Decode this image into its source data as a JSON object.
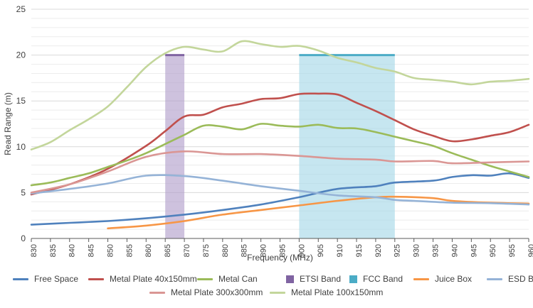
{
  "chart_data": {
    "type": "line",
    "title": "",
    "xlabel": "Frequency (MHz)",
    "ylabel": "Read Range (m)",
    "xlim": [
      830,
      960
    ],
    "ylim": [
      0,
      25
    ],
    "x_ticks": [
      830,
      835,
      840,
      845,
      850,
      855,
      860,
      865,
      870,
      875,
      880,
      885,
      890,
      895,
      900,
      905,
      910,
      915,
      920,
      925,
      930,
      935,
      940,
      945,
      950,
      955,
      960
    ],
    "y_ticks": [
      0,
      5,
      10,
      15,
      20,
      25
    ],
    "grid": "horizontal",
    "legend_position": "bottom",
    "bands": [
      {
        "name": "ETSI Band",
        "x": [
          865,
          870
        ],
        "y": 20,
        "color": "#8064a2"
      },
      {
        "name": "FCC Band",
        "x": [
          900,
          925
        ],
        "y": 20,
        "color": "#4bacc6"
      }
    ],
    "series": [
      {
        "name": "Free Space",
        "color": "#4f81bd",
        "x": [
          830,
          840,
          850,
          860,
          870,
          880,
          890,
          900,
          910,
          920,
          925,
          935,
          940,
          945,
          950,
          955,
          960
        ],
        "values": [
          1.5,
          1.7,
          1.9,
          2.2,
          2.6,
          3.1,
          3.7,
          4.5,
          5.4,
          5.7,
          6.1,
          6.3,
          6.7,
          6.9,
          6.85,
          7.1,
          6.6
        ]
      },
      {
        "name": "Metal Plate 40x150mm",
        "color": "#c0504d",
        "x": [
          830,
          840,
          850,
          860,
          865,
          870,
          875,
          880,
          885,
          890,
          895,
          900,
          905,
          910,
          915,
          920,
          925,
          930,
          935,
          940,
          945,
          950,
          955,
          960
        ],
        "values": [
          4.8,
          5.9,
          7.6,
          10.1,
          11.7,
          13.3,
          13.5,
          14.3,
          14.7,
          15.2,
          15.3,
          15.75,
          15.8,
          15.7,
          14.8,
          13.9,
          12.9,
          11.9,
          11.2,
          10.6,
          10.8,
          11.2,
          11.6,
          12.4
        ]
      },
      {
        "name": "Metal Can",
        "color": "#9bbb59",
        "x": [
          830,
          835,
          840,
          845,
          850,
          855,
          860,
          865,
          870,
          875,
          880,
          885,
          890,
          895,
          900,
          905,
          910,
          915,
          920,
          925,
          930,
          935,
          940,
          945,
          950,
          955,
          960
        ],
        "values": [
          5.8,
          6.1,
          6.6,
          7.1,
          7.8,
          8.5,
          9.3,
          10.3,
          11.3,
          12.3,
          12.2,
          11.9,
          12.5,
          12.3,
          12.2,
          12.4,
          12.05,
          12.0,
          11.6,
          11.1,
          10.6,
          10.1,
          9.3,
          8.6,
          7.9,
          7.3,
          6.7
        ]
      },
      {
        "name": "Juice Box",
        "color": "#f79646",
        "x": [
          850,
          860,
          870,
          880,
          890,
          900,
          910,
          920,
          925,
          935,
          940,
          950,
          960
        ],
        "values": [
          1.1,
          1.4,
          1.9,
          2.6,
          3.1,
          3.6,
          4.1,
          4.5,
          4.55,
          4.4,
          4.1,
          3.9,
          3.8
        ]
      },
      {
        "name": "ESD Bag",
        "color": "#95b3d7",
        "x": [
          830,
          840,
          850,
          860,
          870,
          880,
          890,
          900,
          910,
          920,
          925,
          930,
          940,
          950,
          960
        ],
        "values": [
          4.9,
          5.4,
          6.0,
          6.85,
          6.8,
          6.3,
          5.7,
          5.2,
          4.7,
          4.5,
          4.2,
          4.1,
          3.9,
          3.85,
          3.7
        ]
      },
      {
        "name": "Metal Plate 300x300mm",
        "color": "#da9694",
        "x": [
          830,
          840,
          850,
          860,
          870,
          880,
          890,
          900,
          910,
          920,
          925,
          935,
          940,
          950,
          960
        ],
        "values": [
          5.0,
          5.9,
          7.3,
          8.9,
          9.5,
          9.2,
          9.2,
          9.0,
          8.7,
          8.6,
          8.4,
          8.45,
          8.2,
          8.3,
          8.4
        ]
      },
      {
        "name": "Metal Plate 100x150mm",
        "color": "#c3d69b",
        "x": [
          830,
          835,
          840,
          845,
          850,
          855,
          860,
          865,
          870,
          875,
          880,
          885,
          890,
          895,
          900,
          905,
          910,
          915,
          920,
          925,
          930,
          935,
          940,
          945,
          950,
          955,
          960
        ],
        "values": [
          9.7,
          10.5,
          11.8,
          13.0,
          14.4,
          16.5,
          18.7,
          20.2,
          20.9,
          20.6,
          20.4,
          21.5,
          21.2,
          20.9,
          21.0,
          20.5,
          19.7,
          19.2,
          18.6,
          18.2,
          17.5,
          17.3,
          17.1,
          16.8,
          17.1,
          17.2,
          17.4
        ]
      }
    ]
  },
  "legend": {
    "row1": [
      {
        "label": "Free Space",
        "color": "#4f81bd",
        "kind": "line"
      },
      {
        "label": "Metal Plate 40x150mm",
        "color": "#c0504d",
        "kind": "line"
      },
      {
        "label": "Metal Can",
        "color": "#9bbb59",
        "kind": "line"
      },
      {
        "label": "ETSI Band",
        "color": "#8064a2",
        "kind": "box"
      },
      {
        "label": "FCC Band",
        "color": "#4bacc6",
        "kind": "box"
      },
      {
        "label": "Juice Box",
        "color": "#f79646",
        "kind": "line"
      },
      {
        "label": "ESD Bag",
        "color": "#95b3d7",
        "kind": "line"
      }
    ],
    "row2": [
      {
        "label": "Metal Plate 300x300mm",
        "color": "#da9694",
        "kind": "line"
      },
      {
        "label": "Metal Plate 100x150mm",
        "color": "#c3d69b",
        "kind": "line"
      }
    ]
  }
}
